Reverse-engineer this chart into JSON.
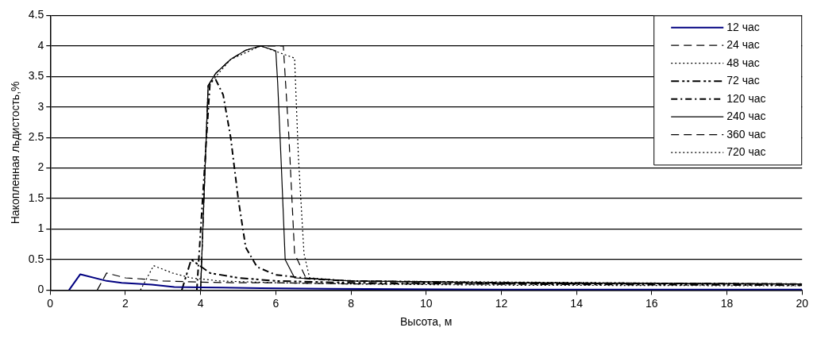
{
  "chart_data": {
    "type": "line",
    "xlabel": "Высота, м",
    "ylabel": "Накопленная льдистость,%",
    "xlim": [
      0,
      20
    ],
    "xticks": [
      0,
      2,
      4,
      6,
      8,
      10,
      12,
      14,
      16,
      18,
      20
    ],
    "ylim": [
      0,
      4.5
    ],
    "yticks": [
      0,
      0.5,
      1,
      1.5,
      2,
      2.5,
      3,
      3.5,
      4,
      4.5
    ],
    "grid": "y",
    "legend": "top right",
    "marker": "none",
    "series": [
      {
        "name": "12 час",
        "color": "#000080",
        "line_style": "solid",
        "x": [
          0.5,
          0.8,
          1.5,
          1.9,
          2.7,
          3.3,
          4.6,
          5.6,
          7.4,
          12,
          20
        ],
        "values": [
          0,
          0.26,
          0.15,
          0.12,
          0.09,
          0.05,
          0.04,
          0.03,
          0.02,
          0.01,
          0.01
        ]
      },
      {
        "name": "24 час",
        "color": "#000000",
        "line_style": "dashed",
        "x": [
          1.25,
          1.5,
          2,
          2.5,
          3,
          4,
          5,
          6,
          8,
          12,
          16,
          20
        ],
        "values": [
          0,
          0.28,
          0.2,
          0.18,
          0.15,
          0.13,
          0.12,
          0.12,
          0.1,
          0.1,
          0.1,
          0.1
        ]
      },
      {
        "name": "48 час",
        "color": "#000000",
        "line_style": "dotted",
        "x": [
          2.4,
          2.75,
          3.25,
          3.75,
          4.5,
          6,
          8,
          12,
          20
        ],
        "values": [
          0,
          0.4,
          0.28,
          0.2,
          0.15,
          0.12,
          0.1,
          0.08,
          0.07
        ]
      },
      {
        "name": "72 час",
        "color": "#000000",
        "line_style": "dashed",
        "x": [
          3.5,
          3.75,
          4.25,
          5,
          6,
          8,
          12,
          20
        ],
        "values": [
          0,
          0.5,
          0.28,
          0.2,
          0.15,
          0.12,
          0.1,
          0.08
        ]
      },
      {
        "name": "120 час",
        "color": "#000000",
        "line_style": "dashed",
        "x": [
          3.9,
          4.25,
          4.4,
          4.6,
          4.8,
          5.0,
          5.2,
          5.5,
          6,
          7,
          8,
          12,
          20
        ],
        "values": [
          0,
          3.4,
          3.45,
          3.2,
          2.5,
          1.5,
          0.7,
          0.38,
          0.25,
          0.18,
          0.15,
          0.12,
          0.1
        ]
      },
      {
        "name": "240 час",
        "color": "#000000",
        "line_style": "solid",
        "x": [
          4.0,
          4.2,
          4.4,
          4.8,
          5.2,
          5.6,
          6.0,
          6.05,
          6.15,
          6.25,
          6.5,
          8,
          12,
          20
        ],
        "values": [
          0,
          3.35,
          3.55,
          3.78,
          3.93,
          4.0,
          3.92,
          3.4,
          2.0,
          0.5,
          0.2,
          0.15,
          0.12,
          0.1
        ]
      },
      {
        "name": "360 час",
        "color": "#000000",
        "line_style": "dashed",
        "x": [
          4.0,
          4.2,
          4.4,
          4.8,
          5.2,
          5.6,
          6.2,
          6.35,
          6.5,
          6.8,
          8,
          12,
          20
        ],
        "values": [
          0,
          3.35,
          3.55,
          3.78,
          3.93,
          4.0,
          4.0,
          2.5,
          0.6,
          0.2,
          0.15,
          0.12,
          0.1
        ]
      },
      {
        "name": "720 час",
        "color": "#000000",
        "line_style": "dotted",
        "x": [
          4.0,
          4.2,
          4.8,
          5.6,
          6.5,
          6.6,
          6.75,
          6.9,
          8,
          20
        ],
        "values": [
          0,
          3.35,
          3.78,
          4.0,
          3.8,
          2.2,
          0.6,
          0.2,
          0.15,
          0.1
        ]
      }
    ]
  }
}
